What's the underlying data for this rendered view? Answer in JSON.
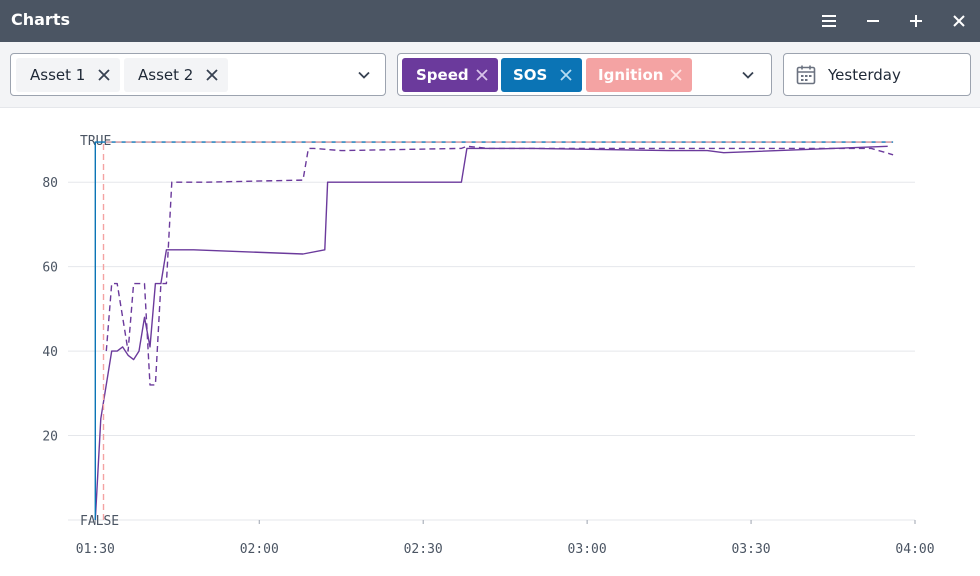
{
  "window": {
    "title": "Charts"
  },
  "assets": [
    {
      "label": "Asset 1"
    },
    {
      "label": "Asset 2"
    }
  ],
  "metrics": [
    {
      "label": "Speed",
      "color": "#6b3a9c"
    },
    {
      "label": "SOS",
      "color": "#0b74b5"
    },
    {
      "label": "Ignition",
      "color": "#f4a3a3"
    }
  ],
  "date_range": {
    "label": "Yesterday"
  },
  "chart_data": {
    "type": "line",
    "x_unit": "time",
    "xlim": [
      "01:25",
      "04:00"
    ],
    "x_ticks": [
      "01:30",
      "02:00",
      "02:30",
      "03:00",
      "03:30",
      "04:00"
    ],
    "ylim": [
      0,
      90
    ],
    "y_ticks": [
      "20",
      "40",
      "60",
      "80"
    ],
    "boolean_labels": {
      "true": "TRUE",
      "false": "FALSE"
    },
    "grid": true,
    "series": [
      {
        "asset": "Asset 1",
        "metric": "Speed",
        "color": "#6b3a9c",
        "style": "solid",
        "x": [
          "01:30:00",
          "01:31:00",
          "01:33:00",
          "01:34:00",
          "01:35:00",
          "01:36:00",
          "01:37:00",
          "01:38:00",
          "01:39:00",
          "01:40:00",
          "01:41:00",
          "01:42:00",
          "01:43:00",
          "01:48:00",
          "02:08:00",
          "02:12:00",
          "02:12:30",
          "02:13:00",
          "02:16:00",
          "02:37:00",
          "02:38:00",
          "02:50:00",
          "03:15:00",
          "03:22:00",
          "03:25:00",
          "03:55:00"
        ],
        "y": [
          0,
          24,
          40,
          40,
          41,
          39,
          38,
          40,
          48,
          41,
          56,
          56,
          64,
          64,
          63,
          64,
          80,
          80,
          80,
          80,
          88,
          88,
          87.5,
          87.5,
          87,
          88.5
        ]
      },
      {
        "asset": "Asset 2",
        "metric": "Speed",
        "color": "#6b3a9c",
        "style": "dashed",
        "x": [
          "01:32:00",
          "01:33:00",
          "01:34:00",
          "01:36:00",
          "01:37:00",
          "01:38:00",
          "01:39:00",
          "01:40:00",
          "01:41:00",
          "01:42:00",
          "01:43:00",
          "01:44:00",
          "01:45:00",
          "01:50:00",
          "02:08:00",
          "02:09:00",
          "02:10:00",
          "02:15:00",
          "02:37:00",
          "02:38:00",
          "02:42:00",
          "02:50:00",
          "03:30:00",
          "03:52:00",
          "03:56:00"
        ],
        "y": [
          40,
          56,
          56,
          40,
          56,
          56,
          56,
          32,
          32,
          56,
          56,
          80,
          80,
          80,
          80.5,
          88,
          88,
          87.5,
          88,
          88.5,
          88,
          88,
          88,
          88,
          86.5
        ]
      },
      {
        "asset": "Asset 1",
        "metric": "SOS",
        "color": "#0b74b5",
        "style": "solid",
        "x": [
          "01:30:00",
          "01:30:00",
          "03:56:00"
        ],
        "y": [
          0,
          89.5,
          89.5
        ]
      },
      {
        "asset": "Asset 1",
        "metric": "Ignition",
        "color": "#f4a3a3",
        "style": "dashed",
        "x": [
          "01:31:30",
          "01:31:30",
          "03:56:00"
        ],
        "y": [
          0,
          89.5,
          89.5
        ]
      }
    ]
  }
}
